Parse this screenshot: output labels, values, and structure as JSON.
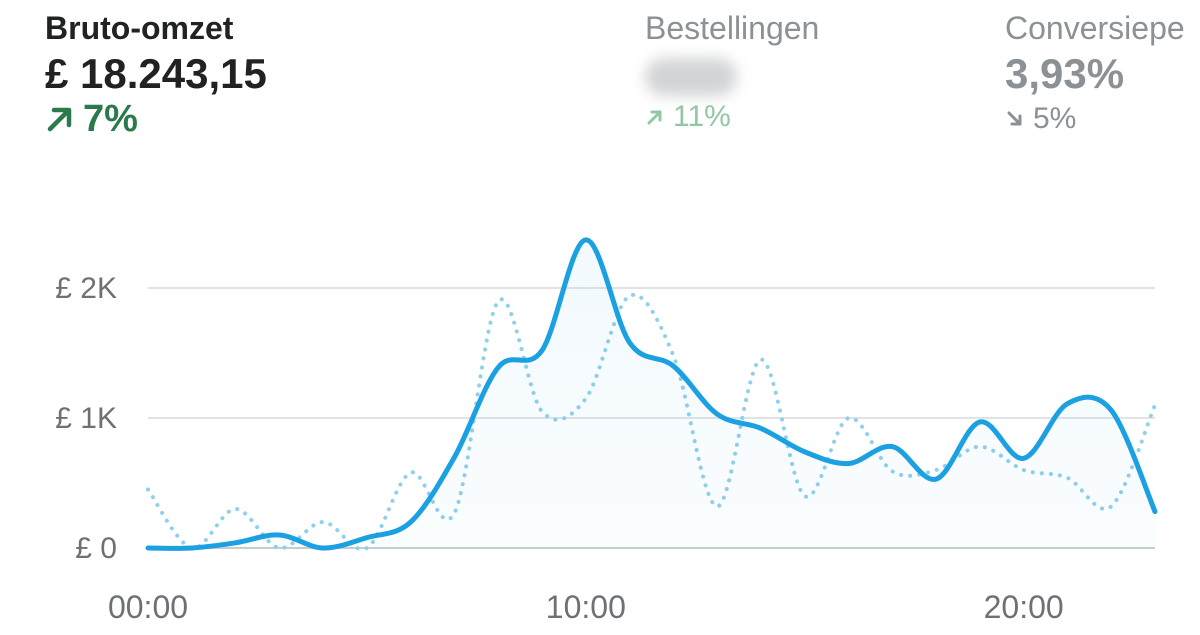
{
  "metrics": {
    "gross_sales": {
      "label": "Bruto-omzet",
      "value": "£ 18.243,15",
      "change": "7%",
      "direction": "up",
      "color": "#2b7a4b"
    },
    "orders": {
      "label": "Bestellingen",
      "value_hidden": true,
      "change": "11%",
      "direction": "up",
      "color": "#93c6a5"
    },
    "conversion": {
      "label": "Conversiepe",
      "value": "3,93%",
      "change": "5%",
      "direction": "down",
      "color": "#8c9196"
    }
  },
  "chart_data": {
    "type": "line",
    "x_unit": "hour",
    "xlim": [
      0,
      23
    ],
    "ylim": [
      0,
      2000
    ],
    "y_ticks": [
      {
        "value": 0,
        "label": "£ 0"
      },
      {
        "value": 1000,
        "label": "£ 1K"
      },
      {
        "value": 2000,
        "label": "£ 2K"
      }
    ],
    "x_ticks": [
      {
        "value": 0,
        "label": "00:00"
      },
      {
        "value": 10,
        "label": "10:00"
      },
      {
        "value": 20,
        "label": "20:00"
      }
    ],
    "grid": true,
    "series": [
      {
        "style": "solid",
        "color": "#1ba0e2",
        "x": [
          0,
          1,
          2,
          3,
          4,
          5,
          6,
          7,
          8,
          9,
          10,
          11,
          12,
          13,
          14,
          15,
          16,
          17,
          18,
          19,
          20,
          21,
          22,
          23
        ],
        "y": [
          0,
          0,
          40,
          100,
          0,
          80,
          200,
          700,
          1390,
          1520,
          2370,
          1580,
          1400,
          1030,
          920,
          740,
          650,
          780,
          530,
          970,
          690,
          1110,
          1060,
          280
        ]
      },
      {
        "style": "dotted",
        "color": "#8fd0ec",
        "x": [
          0,
          1,
          2,
          3,
          4,
          5,
          6,
          7,
          8,
          9,
          10,
          11,
          12,
          13,
          14,
          15,
          16,
          17,
          18,
          19,
          20,
          21,
          22,
          23
        ],
        "y": [
          450,
          0,
          300,
          0,
          200,
          0,
          580,
          270,
          1900,
          1050,
          1150,
          1940,
          1480,
          320,
          1450,
          400,
          1000,
          590,
          600,
          780,
          600,
          540,
          320,
          1100
        ]
      }
    ]
  }
}
